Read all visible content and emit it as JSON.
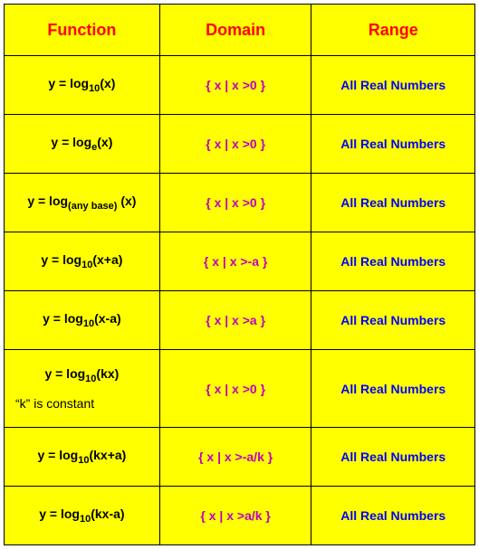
{
  "table": {
    "background_color": "#ffff00",
    "border_color": "#000000",
    "headers": {
      "function": "Function",
      "domain": "Domain",
      "range": "Range",
      "color": "#ff0000",
      "fontsize": 18
    },
    "columns": {
      "function_color": "#000000",
      "domain_color": "#c000c0",
      "range_color": "#0000ff"
    },
    "rows": [
      {
        "func_pre": "y = log",
        "func_sub": "10",
        "func_post": "(x)",
        "domain": "{ x  |  x >0 }",
        "range": "All Real Numbers"
      },
      {
        "func_pre": "y = log",
        "func_sub": "e",
        "func_post": "(x)",
        "domain": "{ x  |  x >0 }",
        "range": "All Real Numbers"
      },
      {
        "func_pre": "y = log",
        "func_sub": "(any base)",
        "func_post": " (x)",
        "domain": "{ x  |  x >0 }",
        "range": "All Real Numbers"
      },
      {
        "func_pre": "y = log",
        "func_sub": "10",
        "func_post": "(x+a)",
        "domain": "{ x  |  x >-a }",
        "range": "All Real Numbers"
      },
      {
        "func_pre": "y = log",
        "func_sub": "10",
        "func_post": "(x-a)",
        "domain": "{ x  |  x >a }",
        "range": "All Real Numbers"
      },
      {
        "func_pre": "y = log",
        "func_sub": "10",
        "func_post": "(kx)",
        "note": "“k” is constant",
        "domain": "{ x  |  x >0 }",
        "range": "All Real Numbers"
      },
      {
        "func_pre": "y = log",
        "func_sub": "10",
        "func_post": "(kx+a)",
        "domain": "{ x  |  x >-a/k }",
        "range": "All Real Numbers"
      },
      {
        "func_pre": "y = log",
        "func_sub": "10",
        "func_post": "(kx-a)",
        "domain": "{ x  |  x >a/k }",
        "range": "All Real Numbers"
      }
    ]
  }
}
